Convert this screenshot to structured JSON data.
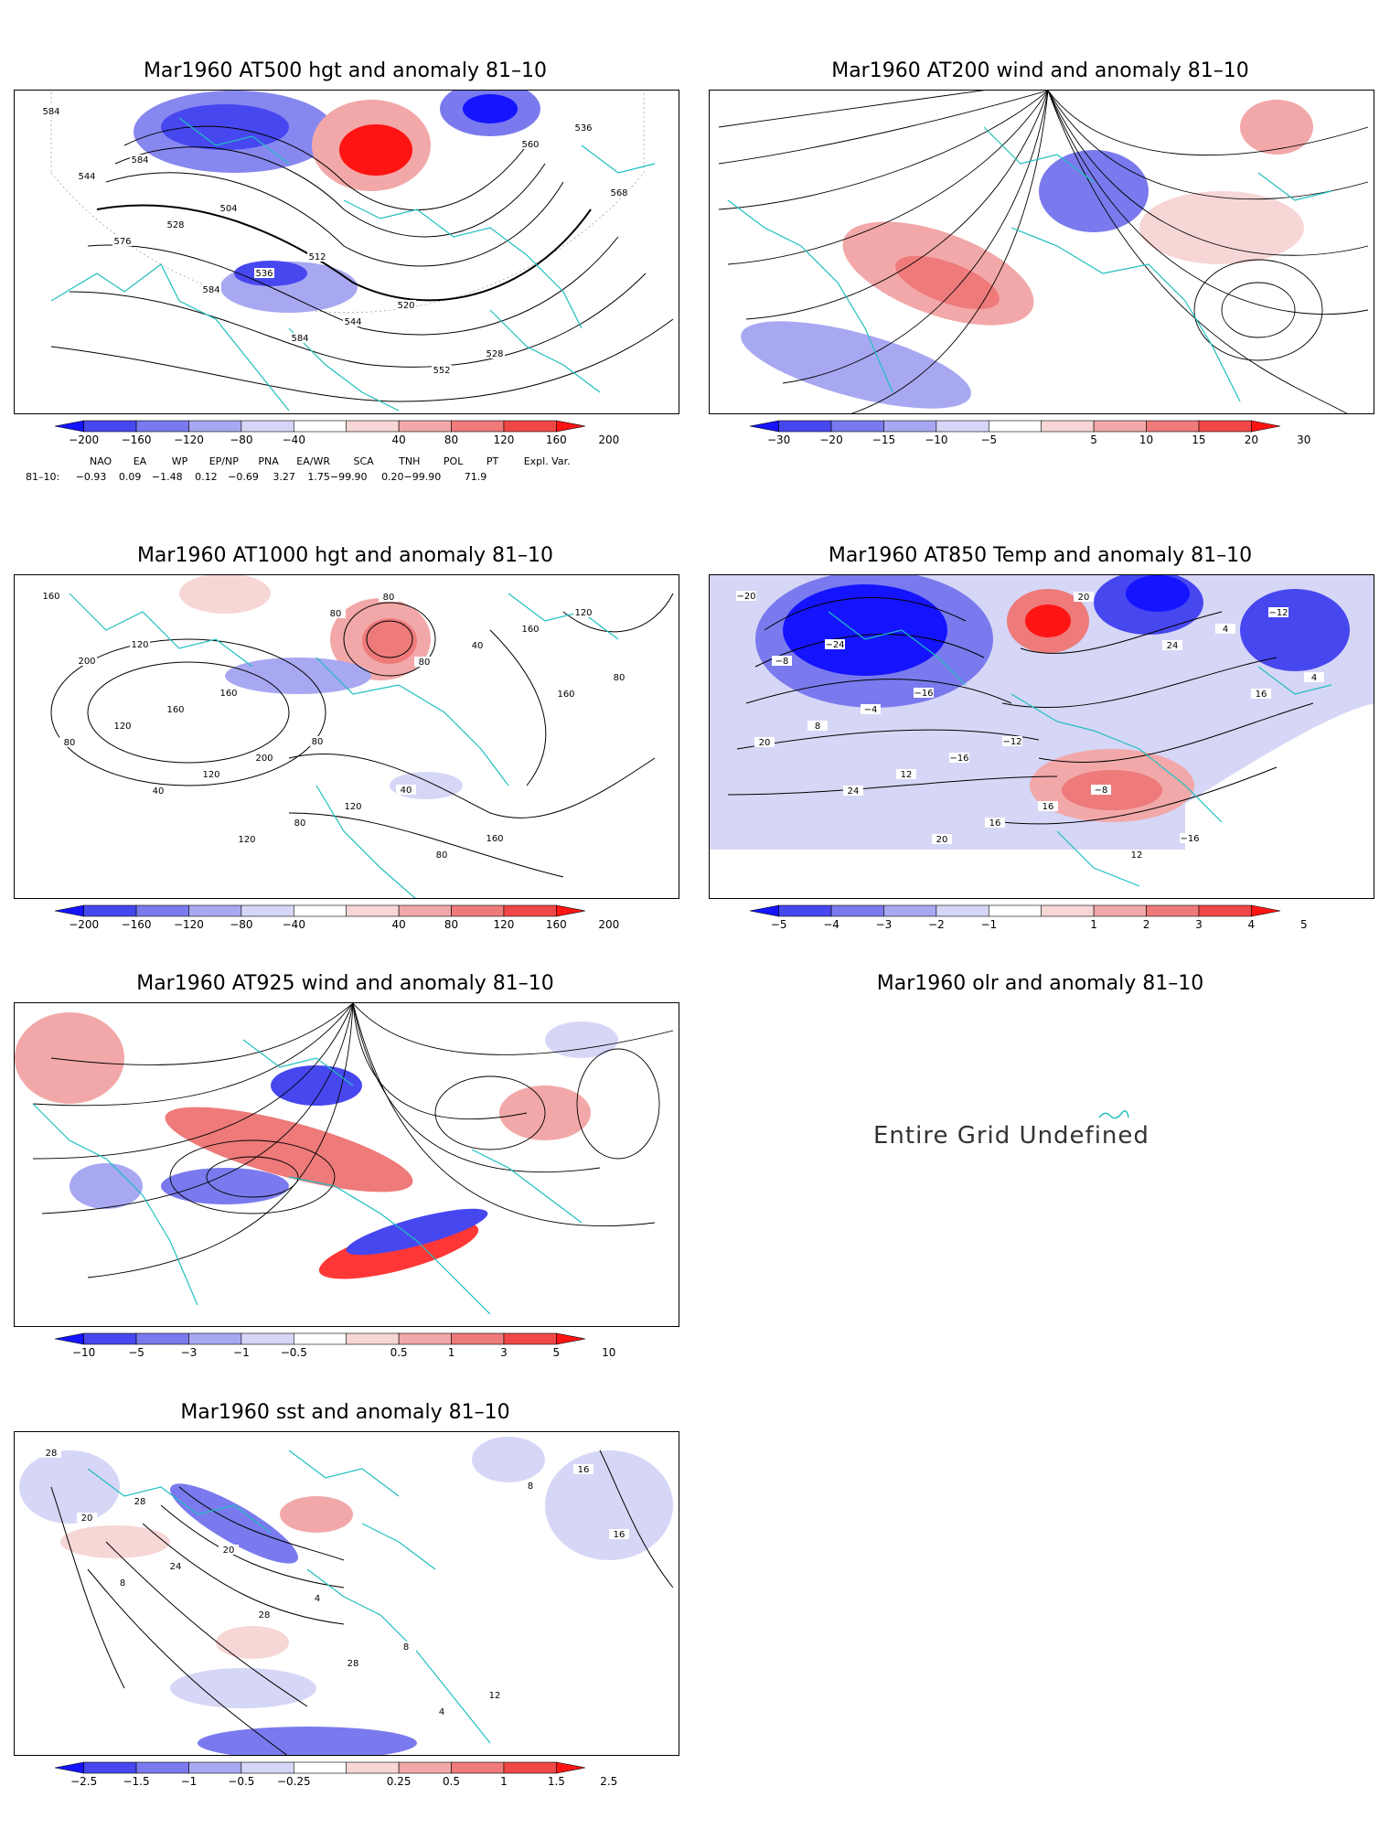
{
  "panels": [
    {
      "id": "p1",
      "title": "Mar1960 AT500 hgt and anomaly 81–10",
      "ticks": [
        "−200",
        "−160",
        "−120",
        "−80",
        "−40",
        "40",
        "80",
        "120",
        "160",
        "200"
      ],
      "labels": [
        "584",
        "584",
        "504",
        "512",
        "520",
        "528",
        "536",
        "544",
        "528",
        "536",
        "544",
        "552",
        "560",
        "568",
        "576",
        "584",
        "584"
      ]
    },
    {
      "id": "p2",
      "title": "Mar1960 AT200 wind and anomaly 81–10",
      "ticks": [
        "−30",
        "−20",
        "−15",
        "−10",
        "−5",
        "5",
        "10",
        "15",
        "20",
        "30"
      ],
      "labels": []
    },
    {
      "id": "p3",
      "title": "Mar1960 AT1000 hgt and anomaly 81–10",
      "ticks": [
        "−200",
        "−160",
        "−120",
        "−80",
        "−40",
        "40",
        "80",
        "120",
        "160",
        "200"
      ],
      "labels": [
        "160",
        "120",
        "160",
        "80",
        "40",
        "160",
        "120",
        "200",
        "160",
        "200",
        "120",
        "80",
        "160",
        "80",
        "120",
        "120",
        "80",
        "80",
        "40",
        "160",
        "80",
        "40",
        "120",
        "80",
        "80"
      ]
    },
    {
      "id": "p4",
      "title": "Mar1960 AT850 Temp and anomaly 81–10",
      "ticks": [
        "−5",
        "−4",
        "−3",
        "−2",
        "−1",
        "1",
        "2",
        "3",
        "4",
        "5"
      ],
      "labels": [
        "−20",
        "−24",
        "−16",
        "−12",
        "−8",
        "−16",
        "−12",
        "−8",
        "−4",
        "−16",
        "16",
        "12",
        "4",
        "4",
        "8",
        "12",
        "16",
        "20",
        "24",
        "16",
        "20",
        "24",
        "20"
      ]
    },
    {
      "id": "p5",
      "title": "Mar1960 AT925 wind and anomaly 81–10",
      "ticks": [
        "−10",
        "−5",
        "−3",
        "−1",
        "−0.5",
        "0.5",
        "1",
        "3",
        "5",
        "10"
      ],
      "labels": []
    },
    {
      "id": "p6",
      "title": "Mar1960 olr and anomaly 81–10",
      "undefined_text": "Entire Grid Undefined"
    },
    {
      "id": "p7",
      "title": "Mar1960 sst and anomaly 81–10",
      "ticks": [
        "−2.5",
        "−1.5",
        "−1",
        "−0.5",
        "−0.25",
        "0.25",
        "0.5",
        "1",
        "1.5",
        "2.5"
      ],
      "labels": [
        "28",
        "28",
        "20",
        "4",
        "8",
        "12",
        "16",
        "20",
        "24",
        "28",
        "28",
        "4",
        "8",
        "16",
        "8"
      ]
    }
  ],
  "index_table": {
    "headers": [
      "NAO",
      "EA",
      "WP",
      "EP/NP",
      "PNA",
      "EA/WR",
      "SCA",
      "TNH",
      "POL",
      "PT",
      "Expl. Var."
    ],
    "row_label": "81–10:",
    "values": [
      "−0.93",
      "0.09",
      "−1.48",
      "0.12",
      "−0.69",
      "3.27",
      "1.75−99.90",
      "0.20−99.90",
      "71.9"
    ]
  },
  "colors": {
    "coast": "#1fbfbf",
    "blues": [
      "#1414ff",
      "#4747f0",
      "#7a7aee",
      "#a8a8f2",
      "#d6d6f7"
    ],
    "reds": [
      "#f7d6d6",
      "#f2a8a8",
      "#ee7a7a",
      "#f04747",
      "#ff1414"
    ]
  }
}
